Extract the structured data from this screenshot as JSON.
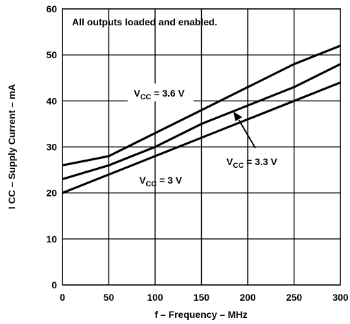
{
  "chart_data": {
    "type": "line",
    "xlabel": "f – Frequency – MHz",
    "ylabel": "I CC – Supply Current – mA",
    "xlim": [
      0,
      300
    ],
    "ylim": [
      0,
      60
    ],
    "xticks": [
      0,
      50,
      100,
      150,
      200,
      250,
      300
    ],
    "yticks": [
      0,
      10,
      20,
      30,
      40,
      50,
      60
    ],
    "grid": true,
    "annotation": "All outputs loaded and enabled.",
    "series": [
      {
        "label_main": "V",
        "label_sub": "CC",
        "label_rest": " = 3.6 V",
        "x": [
          0,
          50,
          100,
          150,
          200,
          250,
          300
        ],
        "y": [
          26,
          28,
          33,
          38,
          43,
          48,
          52
        ]
      },
      {
        "label_main": "V",
        "label_sub": "CC",
        "label_rest": " = 3.3 V",
        "x": [
          0,
          50,
          100,
          150,
          200,
          250,
          300
        ],
        "y": [
          23,
          26,
          30,
          35,
          39,
          43,
          48
        ]
      },
      {
        "label_main": "V",
        "label_sub": "CC",
        "label_rest": " = 3 V",
        "x": [
          0,
          50,
          100,
          150,
          200,
          250,
          300
        ],
        "y": [
          20,
          24,
          28,
          32,
          36,
          40,
          44
        ]
      }
    ]
  }
}
